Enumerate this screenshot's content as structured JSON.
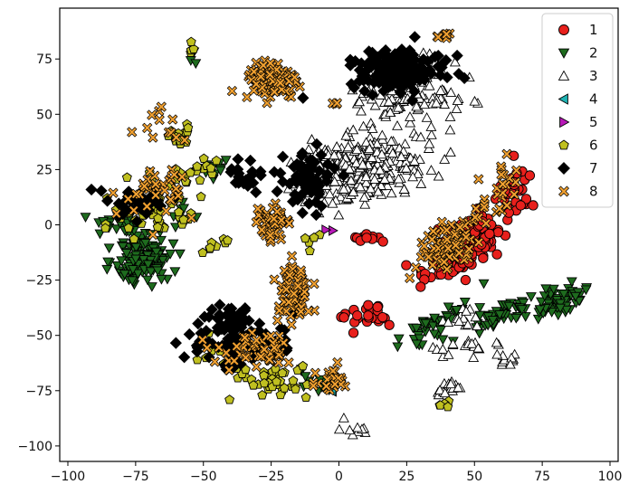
{
  "chart_data": {
    "type": "scatter",
    "title": "",
    "xlabel": "",
    "ylabel": "",
    "xlim": [
      -103,
      103
    ],
    "ylim": [
      -107,
      98
    ],
    "x_ticks": [
      -100,
      -75,
      -50,
      -25,
      0,
      25,
      50,
      75,
      100
    ],
    "y_ticks": [
      75,
      50,
      25,
      0,
      -25,
      -50,
      -75,
      -100
    ],
    "grid": false,
    "legend_position": "top-right",
    "series": [
      {
        "name": "1",
        "marker": "circle",
        "color": "#e8201c",
        "clusters": [
          {
            "center": [
              45,
              -10
            ],
            "spread": [
              11,
              6
            ],
            "angle": 46,
            "count": 190
          },
          {
            "center": [
              65,
              15
            ],
            "spread": [
              5,
              8
            ],
            "angle": 0,
            "count": 35
          },
          {
            "center": [
              12,
              -42
            ],
            "spread": [
              6,
              4
            ],
            "angle": 0,
            "count": 25
          },
          {
            "center": [
              10,
              -5
            ],
            "spread": [
              4,
              2
            ],
            "angle": 0,
            "count": 10
          }
        ]
      },
      {
        "name": "2",
        "marker": "triangle-down",
        "color": "#1e6b1e",
        "clusters": [
          {
            "center": [
              -72,
              -15
            ],
            "spread": [
              7,
              8
            ],
            "angle": 0,
            "count": 140
          },
          {
            "center": [
              -80,
              0
            ],
            "spread": [
              7,
              3
            ],
            "angle": 0,
            "count": 25
          },
          {
            "center": [
              80,
              -35
            ],
            "spread": [
              10,
              4
            ],
            "angle": 30,
            "count": 70
          },
          {
            "center": [
              60,
              -40
            ],
            "spread": [
              10,
              3
            ],
            "angle": 35,
            "count": 45
          },
          {
            "center": [
              35,
              -45
            ],
            "spread": [
              12,
              3
            ],
            "angle": 40,
            "count": 45
          },
          {
            "center": [
              -45,
              25
            ],
            "spread": [
              5,
              3
            ],
            "angle": 0,
            "count": 12
          },
          {
            "center": [
              -58,
              5
            ],
            "spread": [
              4,
              4
            ],
            "angle": 0,
            "count": 10
          },
          {
            "center": [
              -10,
              -70
            ],
            "spread": [
              4,
              4
            ],
            "angle": 0,
            "count": 10
          },
          {
            "center": [
              -54,
              76
            ],
            "spread": [
              1,
              2
            ],
            "angle": 0,
            "count": 4
          }
        ]
      },
      {
        "name": "3",
        "marker": "triangle-up",
        "color": "#ffffff",
        "clusters": [
          {
            "center": [
              8,
              25
            ],
            "spread": [
              16,
              9
            ],
            "angle": 10,
            "count": 330
          },
          {
            "center": [
              25,
              60
            ],
            "spread": [
              12,
              10
            ],
            "angle": 0,
            "count": 140
          },
          {
            "center": [
              45,
              -43
            ],
            "spread": [
              4,
              3
            ],
            "angle": 0,
            "count": 14
          },
          {
            "center": [
              50,
              -55
            ],
            "spread": [
              6,
              3
            ],
            "angle": 0,
            "count": 14
          },
          {
            "center": [
              40,
              -75
            ],
            "spread": [
              4,
              4
            ],
            "angle": 0,
            "count": 16
          },
          {
            "center": [
              62,
              -60
            ],
            "spread": [
              3,
              3
            ],
            "angle": 0,
            "count": 10
          },
          {
            "center": [
              5,
              -92
            ],
            "spread": [
              3,
              3
            ],
            "angle": 0,
            "count": 10
          },
          {
            "center": [
              38,
              -58
            ],
            "spread": [
              2,
              2
            ],
            "angle": 0,
            "count": 5
          }
        ]
      },
      {
        "name": "4",
        "marker": "triangle-left",
        "color": "#1fb2b2",
        "clusters": [
          {
            "center": [
              -3,
              -75
            ],
            "spread": [
              1,
              1
            ],
            "angle": 0,
            "count": 2
          },
          {
            "center": [
              -28,
              -57
            ],
            "spread": [
              1,
              1
            ],
            "angle": 0,
            "count": 1
          }
        ]
      },
      {
        "name": "5",
        "marker": "triangle-right",
        "color": "#b818b8",
        "clusters": [
          {
            "center": [
              -3,
              -1
            ],
            "spread": [
              1,
              1
            ],
            "angle": 0,
            "count": 2
          }
        ]
      },
      {
        "name": "6",
        "marker": "pentagon",
        "color": "#c0c020",
        "clusters": [
          {
            "center": [
              -68,
              8
            ],
            "spread": [
              12,
              8
            ],
            "angle": 0,
            "count": 60
          },
          {
            "center": [
              -60,
              40
            ],
            "spread": [
              4,
              5
            ],
            "angle": 0,
            "count": 14
          },
          {
            "center": [
              -52,
              24
            ],
            "spread": [
              6,
              4
            ],
            "angle": 0,
            "count": 18
          },
          {
            "center": [
              -25,
              -70
            ],
            "spread": [
              12,
              6
            ],
            "angle": 0,
            "count": 45
          },
          {
            "center": [
              -45,
              -10
            ],
            "spread": [
              5,
              3
            ],
            "angle": 0,
            "count": 10
          },
          {
            "center": [
              -45,
              -55
            ],
            "spread": [
              5,
              5
            ],
            "angle": 0,
            "count": 10
          },
          {
            "center": [
              -10,
              -5
            ],
            "spread": [
              2,
              3
            ],
            "angle": 0,
            "count": 5
          },
          {
            "center": [
              40,
              -82
            ],
            "spread": [
              3,
              2
            ],
            "angle": 0,
            "count": 5
          },
          {
            "center": [
              -54,
              78
            ],
            "spread": [
              2,
              2
            ],
            "angle": 0,
            "count": 4
          }
        ]
      },
      {
        "name": "7",
        "marker": "diamond",
        "color": "#000000",
        "clusters": [
          {
            "center": [
              22,
              70
            ],
            "spread": [
              12,
              6
            ],
            "angle": 0,
            "count": 160
          },
          {
            "center": [
              -12,
              20
            ],
            "spread": [
              6,
              8
            ],
            "angle": 0,
            "count": 70
          },
          {
            "center": [
              -40,
              -50
            ],
            "spread": [
              10,
              10
            ],
            "angle": 0,
            "count": 90
          },
          {
            "center": [
              -75,
              10
            ],
            "spread": [
              8,
              5
            ],
            "angle": 0,
            "count": 40
          },
          {
            "center": [
              -35,
              22
            ],
            "spread": [
              5,
              4
            ],
            "angle": 0,
            "count": 20
          },
          {
            "center": [
              -25,
              -55
            ],
            "spread": [
              6,
              4
            ],
            "angle": 0,
            "count": 20
          }
        ]
      },
      {
        "name": "8",
        "marker": "x-filled",
        "color": "#f0a030",
        "clusters": [
          {
            "center": [
              -25,
              65
            ],
            "spread": [
              6,
              6
            ],
            "angle": 0,
            "count": 120
          },
          {
            "center": [
              -25,
              0
            ],
            "spread": [
              5,
              6
            ],
            "angle": 0,
            "count": 50
          },
          {
            "center": [
              -17,
              -30
            ],
            "spread": [
              4,
              10
            ],
            "angle": 0,
            "count": 70
          },
          {
            "center": [
              -30,
              -57
            ],
            "spread": [
              10,
              5
            ],
            "angle": 0,
            "count": 55
          },
          {
            "center": [
              -5,
              -70
            ],
            "spread": [
              6,
              4
            ],
            "angle": 0,
            "count": 25
          },
          {
            "center": [
              -65,
              15
            ],
            "spread": [
              10,
              8
            ],
            "angle": 0,
            "count": 35
          },
          {
            "center": [
              -65,
              45
            ],
            "spread": [
              5,
              4
            ],
            "angle": 0,
            "count": 12
          },
          {
            "center": [
              40,
              -10
            ],
            "spread": [
              10,
              6
            ],
            "angle": 46,
            "count": 90
          },
          {
            "center": [
              60,
              15
            ],
            "spread": [
              5,
              8
            ],
            "angle": 0,
            "count": 25
          },
          {
            "center": [
              40,
              85
            ],
            "spread": [
              2,
              2
            ],
            "angle": 0,
            "count": 8
          },
          {
            "center": [
              -2,
              55
            ],
            "spread": [
              1,
              1
            ],
            "angle": 0,
            "count": 3
          }
        ]
      }
    ]
  }
}
